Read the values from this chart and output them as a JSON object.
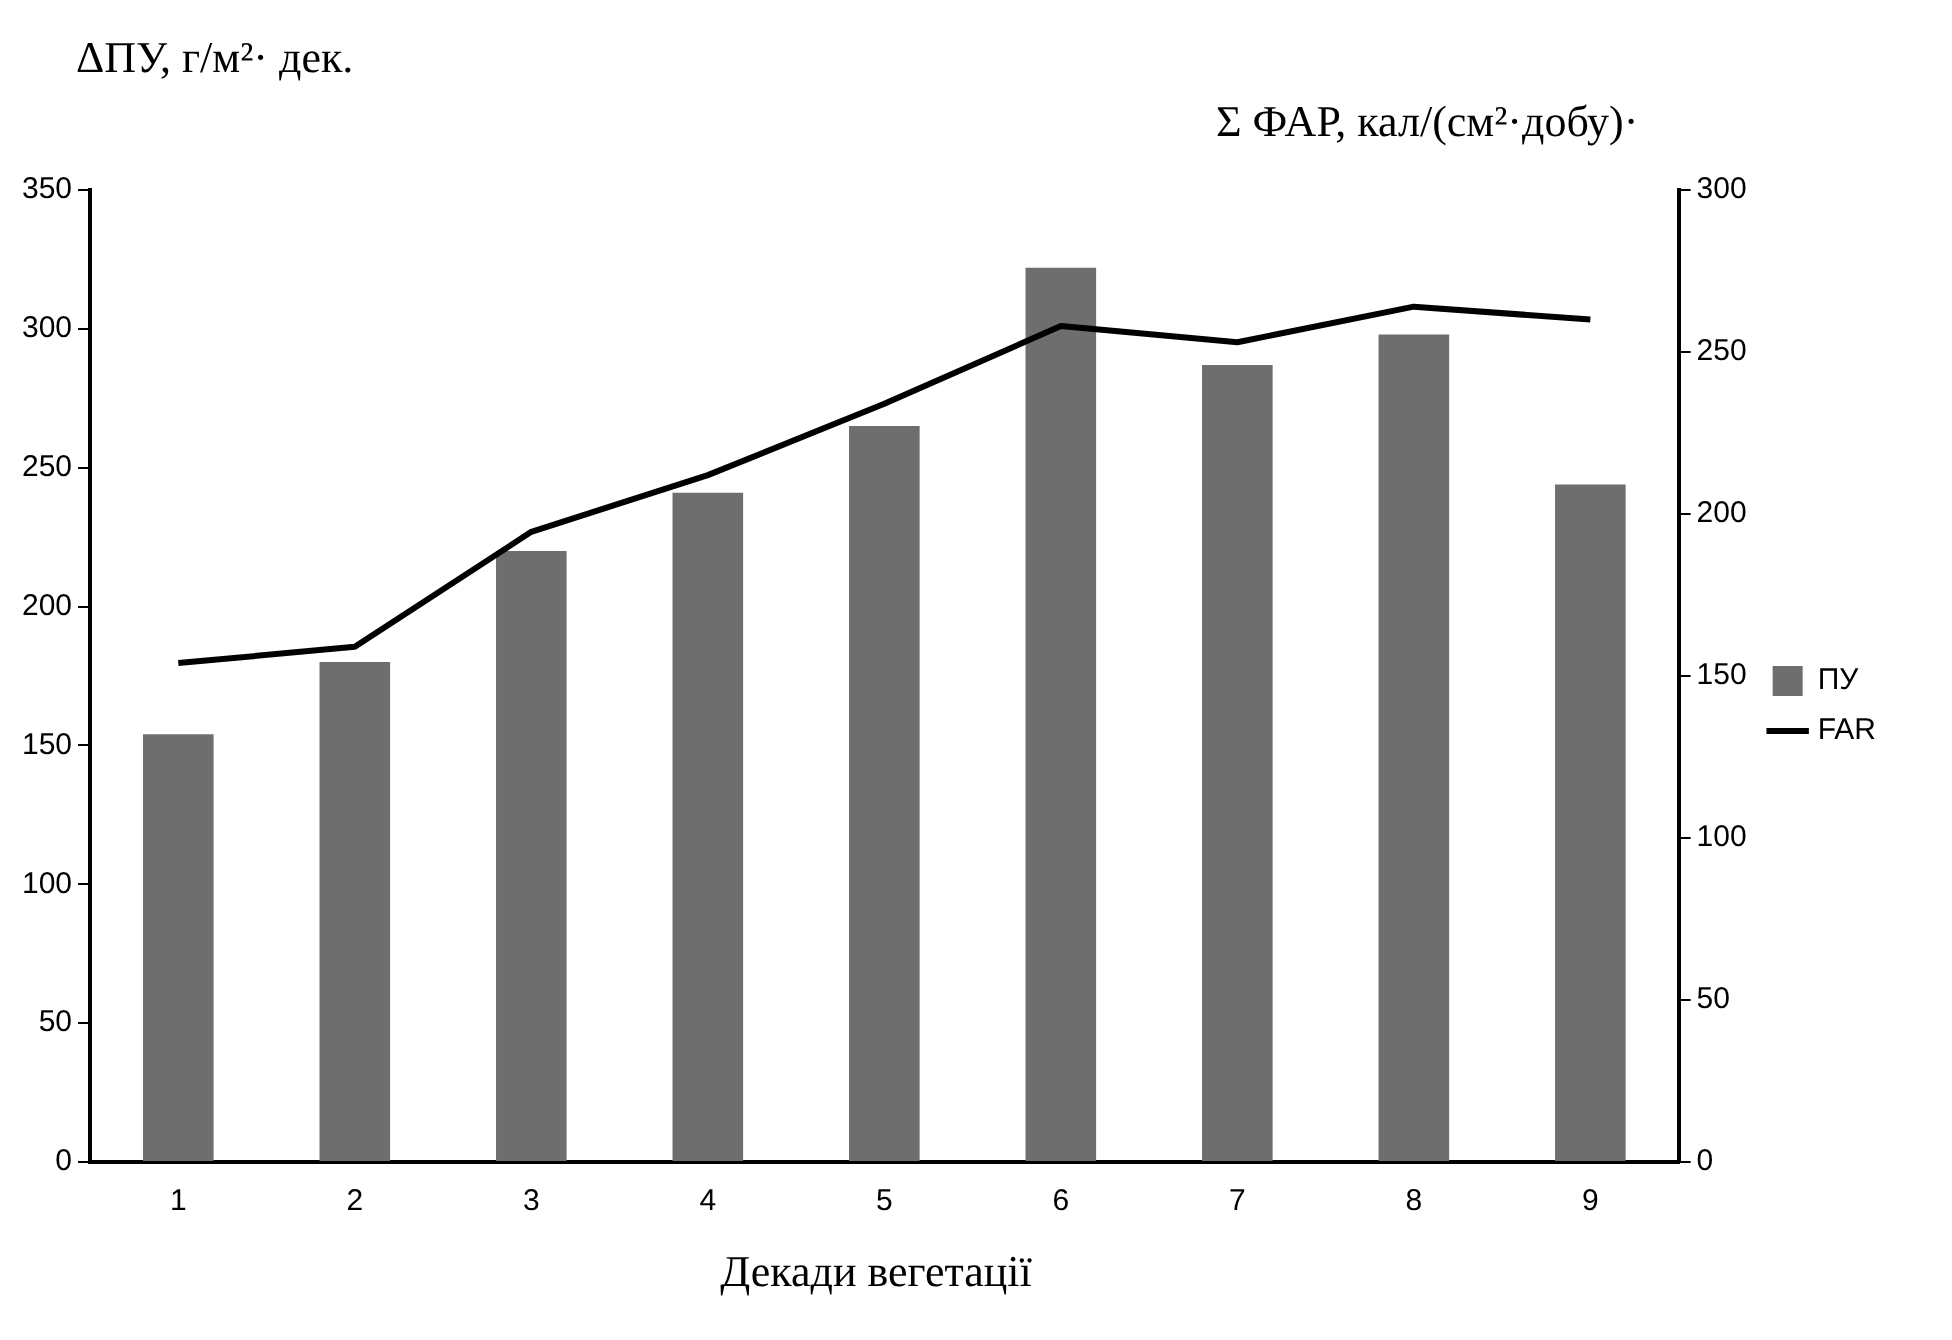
{
  "chart_data": {
    "type": "bar",
    "ylabel": "ΔПУ,  г/м²· дек.",
    "y2label": "Σ ФАР, кал/(см²·добу)·",
    "xlabel": "Декади вегетації",
    "categories": [
      "1",
      "2",
      "3",
      "4",
      "5",
      "6",
      "7",
      "8",
      "9"
    ],
    "series": [
      {
        "name": "ПУ",
        "color": "#6e6e6e",
        "values": [
          154,
          180,
          220,
          241,
          265,
          322,
          287,
          298,
          244
        ]
      },
      {
        "name": "FAR",
        "type": "line",
        "axis": "y2",
        "color": "#000000",
        "values": [
          154,
          159,
          194.5,
          212,
          234,
          258,
          253,
          264,
          260
        ]
      }
    ],
    "ylim": [
      0,
      350
    ],
    "yticks": [
      0,
      50,
      100,
      150,
      200,
      250,
      300,
      350
    ],
    "y2lim": [
      0,
      300
    ],
    "y2ticks": [
      0,
      50,
      100,
      150,
      200,
      250,
      300
    ],
    "grid": false,
    "legend": "right",
    "marker": "none"
  }
}
